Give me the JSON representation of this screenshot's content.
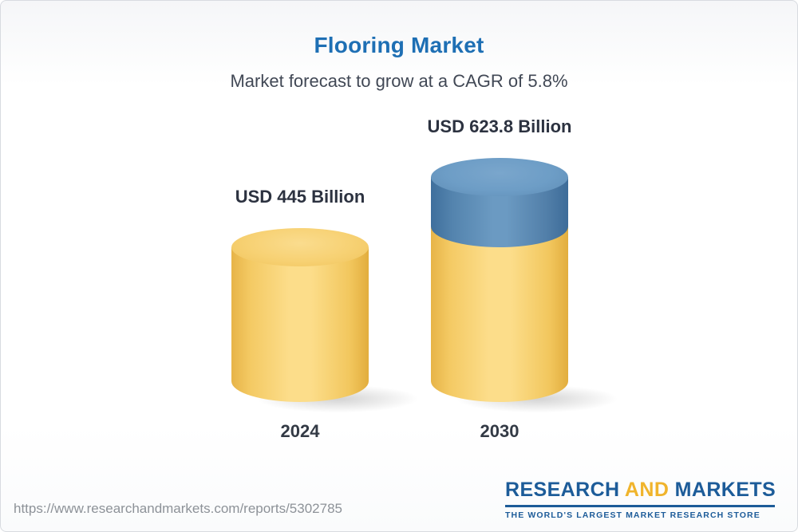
{
  "page": {
    "title": "Flooring Market",
    "subtitle": "Market forecast to grow at a CAGR of 5.8%",
    "source_url": "https://www.researchandmarkets.com/reports/5302785"
  },
  "logo": {
    "word_research": "RESEARCH",
    "word_and": "AND",
    "word_markets": "MARKETS",
    "tagline": "THE WORLD'S LARGEST MARKET RESEARCH STORE",
    "blue": "#1d5c99",
    "gold": "#f0b42c"
  },
  "chart_data": {
    "type": "bar",
    "title": "Flooring Market",
    "subtitle": "Market forecast to grow at a CAGR of 5.8%",
    "unit": "USD Billion",
    "cagr_percent": 5.8,
    "categories": [
      "2024",
      "2030"
    ],
    "values": [
      445,
      623.8
    ],
    "bars": [
      {
        "category": "2024",
        "value": 445,
        "value_label": "USD 445 Billion",
        "segment_colors": [
          "#f7d173"
        ]
      },
      {
        "category": "2030",
        "value": 623.8,
        "value_label": "USD 623.8 Billion",
        "segment_colors": [
          "#f7d173",
          "#6b9ac2"
        ],
        "base_segment_value": 445,
        "growth_segment_value": 178.8
      }
    ],
    "grid": false,
    "legend": null,
    "style": "3d-cylinder"
  }
}
